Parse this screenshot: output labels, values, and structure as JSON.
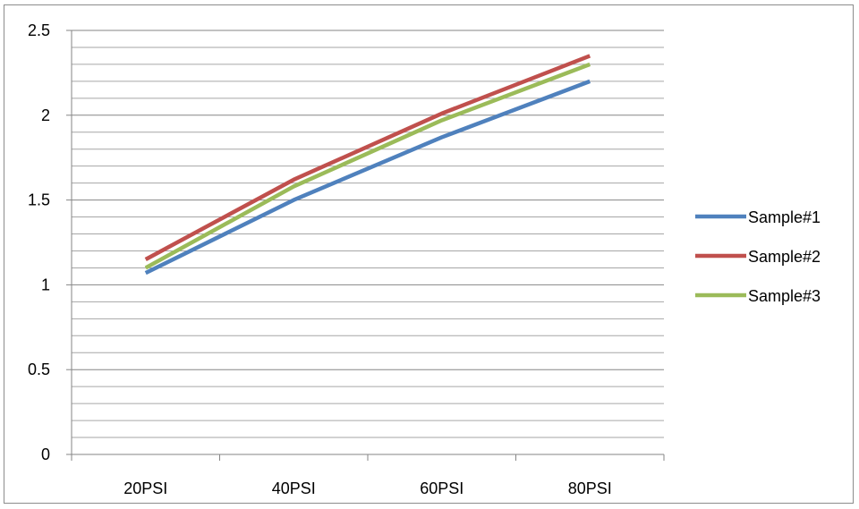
{
  "chart_data": {
    "type": "line",
    "title": "",
    "xlabel": "",
    "ylabel": "",
    "categories": [
      "20PSI",
      "40PSI",
      "60PSI",
      "80PSI"
    ],
    "ylim": [
      0,
      2.5
    ],
    "yticks": [
      "0",
      "0.5",
      "1",
      "1.5",
      "2",
      "2.5"
    ],
    "grid": "horizontal major and minor gridlines",
    "legend_position": "right",
    "series": [
      {
        "name": "Sample#1",
        "color": "#4f81bd",
        "values": [
          1.07,
          1.5,
          1.87,
          2.2
        ]
      },
      {
        "name": "Sample#2",
        "color": "#c0504d",
        "values": [
          1.15,
          1.62,
          2.01,
          2.35
        ]
      },
      {
        "name": "Sample#3",
        "color": "#9bbb59",
        "values": [
          1.1,
          1.58,
          1.97,
          2.3
        ]
      }
    ]
  }
}
